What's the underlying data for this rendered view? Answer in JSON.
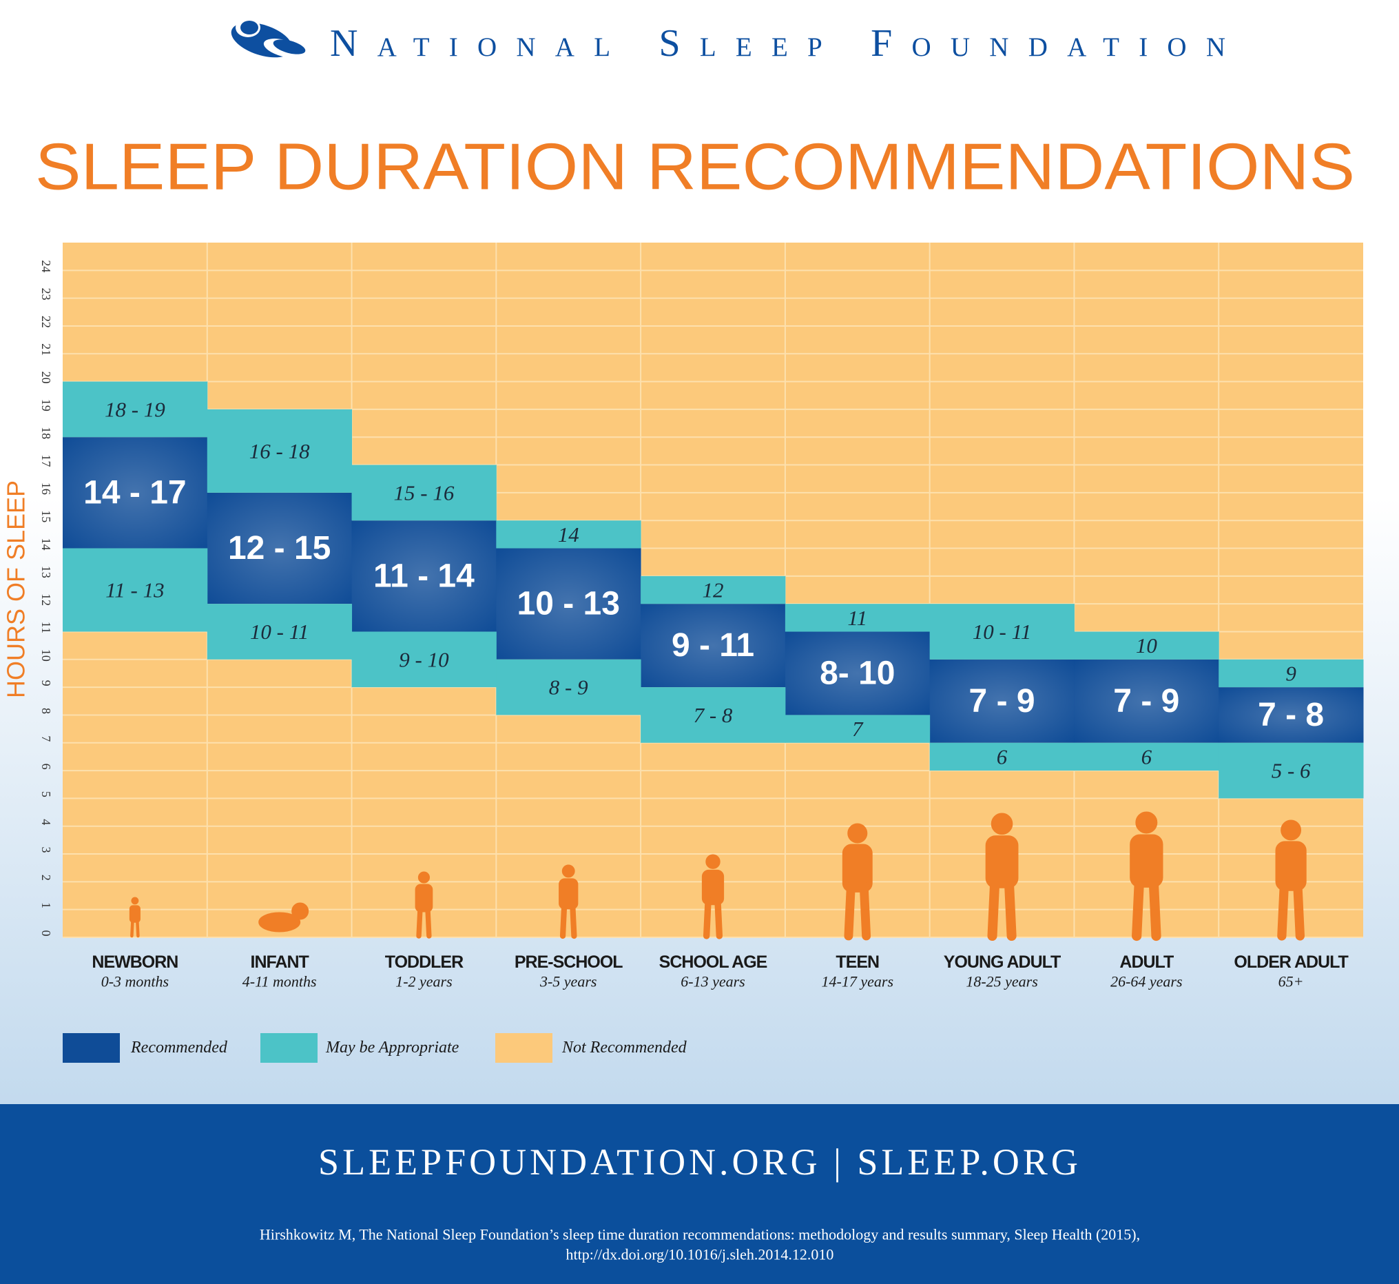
{
  "header": {
    "organization": "National Sleep Foundation"
  },
  "chart_data": {
    "type": "range",
    "title": "SLEEP DURATION RECOMMENDATIONS",
    "y_label": "HOURS OF SLEEP",
    "categories": [
      "NEWBORN",
      "INFANT",
      "TODDLER",
      "PRE-SCHOOL",
      "SCHOOL AGE",
      "TEEN",
      "YOUNG ADULT",
      "ADULT",
      "OLDER ADULT"
    ],
    "category_sublabels": [
      "0-3 months",
      "4-11 months",
      "1-2 years",
      "3-5 years",
      "6-13 years",
      "14-17 years",
      "18-25 years",
      "26-64 years",
      "65+"
    ],
    "ylim": [
      0,
      25
    ],
    "yticks": [
      0,
      1,
      2,
      3,
      4,
      5,
      6,
      7,
      8,
      9,
      10,
      11,
      12,
      13,
      14,
      15,
      16,
      17,
      18,
      19,
      20,
      21,
      22,
      23,
      24
    ],
    "grid": true,
    "series": [
      {
        "name": "Recommended",
        "color": "#0f4c97",
        "ranges": [
          {
            "low": [
              14,
              12,
              11,
              10,
              9,
              8,
              7,
              7,
              7
            ],
            "high": [
              17,
              15,
              14,
              13,
              11,
              10,
              9,
              9,
              8
            ],
            "value_labels": [
              "14 - 17",
              "12 - 15",
              "11 - 14",
              "10 - 13",
              "9 - 11",
              "8- 10",
              "7 - 9",
              "7 - 9",
              "7 - 8"
            ]
          }
        ]
      },
      {
        "name": "May be Appropriate",
        "color": "#4cc3c7",
        "ranges": [
          {
            "low": [
              18,
              16,
              15,
              14,
              12,
              11,
              10,
              10,
              9
            ],
            "high": [
              19,
              18,
              16,
              14,
              12,
              11,
              11,
              10,
              9
            ],
            "value_labels": [
              "18 - 19",
              "16 - 18",
              "15 - 16",
              "14",
              "12",
              "11",
              "10 - 11",
              "10",
              "9"
            ]
          },
          {
            "low": [
              11,
              10,
              9,
              8,
              7,
              7,
              6,
              6,
              5
            ],
            "high": [
              13,
              11,
              10,
              9,
              8,
              7,
              6,
              6,
              6
            ],
            "value_labels": [
              "11 - 13",
              "10 - 11",
              "9 - 10",
              "8 - 9",
              "7 - 8",
              "7",
              "6",
              "6",
              "5 - 6"
            ]
          }
        ]
      },
      {
        "name": "Not Recommended",
        "color": "#fcc97b"
      }
    ]
  },
  "footer": {
    "links": "SLEEPFOUNDATION.ORG | SLEEP.ORG",
    "citation": [
      "Hirshkowitz M, The National Sleep Foundation’s sleep time duration recommendations: methodology and results summary, Sleep Health (2015),",
      "http://dx.doi.org/10.1016/j.sleh.2014.12.010"
    ]
  }
}
